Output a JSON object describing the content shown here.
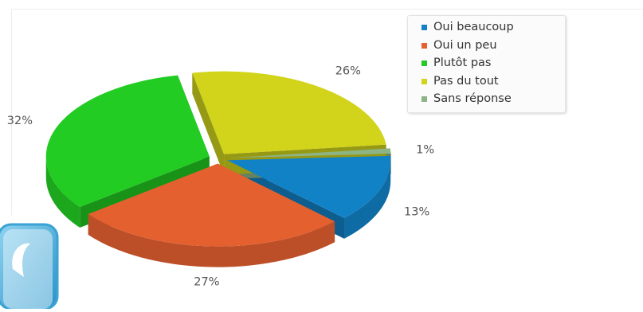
{
  "chart_data": {
    "type": "pie",
    "style": "3d-exploded",
    "legend_position": "top-right",
    "series": [
      {
        "name": "Oui beaucoup",
        "value": 13,
        "label": "13%",
        "color": "#1282C7"
      },
      {
        "name": "Oui un peu",
        "value": 27,
        "label": "27%",
        "color": "#E5602F"
      },
      {
        "name": "Plutôt pas",
        "value": 32,
        "label": "32%",
        "color": "#22CC22"
      },
      {
        "name": "Pas du tout",
        "value": 26,
        "label": "26%",
        "color": "#D1D41A"
      },
      {
        "name": "Sans réponse",
        "value": 1,
        "label": "1%",
        "color": "#8DB486"
      }
    ]
  },
  "logo": {
    "icon": "app-logo-icon",
    "color": "#4BB0DE"
  }
}
